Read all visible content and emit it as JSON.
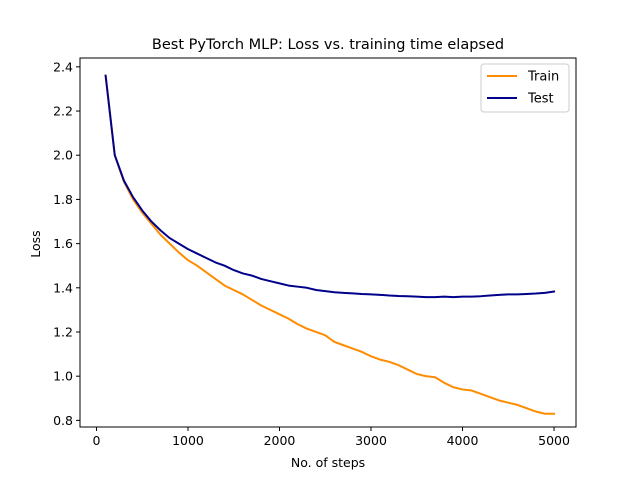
{
  "chart_data": {
    "type": "line",
    "title": "Best PyTorch MLP: Loss vs. training time elapsed",
    "xlabel": "No. of steps",
    "ylabel": "Loss",
    "xlim": [
      -180,
      5240
    ],
    "ylim": [
      0.77,
      2.44
    ],
    "xticks": [
      0,
      1000,
      2000,
      3000,
      4000,
      5000
    ],
    "yticks": [
      0.8,
      1.0,
      1.2,
      1.4,
      1.6,
      1.8,
      2.0,
      2.2,
      2.4
    ],
    "xtick_labels": [
      "0",
      "1000",
      "2000",
      "3000",
      "4000",
      "5000"
    ],
    "ytick_labels": [
      "0.8",
      "1.0",
      "1.2",
      "1.4",
      "1.6",
      "1.8",
      "2.0",
      "2.2",
      "2.4"
    ],
    "grid": false,
    "legend_position": "top-right",
    "x": [
      100,
      200,
      300,
      400,
      500,
      600,
      700,
      800,
      900,
      1000,
      1100,
      1200,
      1300,
      1400,
      1500,
      1600,
      1700,
      1800,
      1900,
      2000,
      2100,
      2200,
      2300,
      2400,
      2500,
      2600,
      2700,
      2800,
      2900,
      3000,
      3100,
      3200,
      3300,
      3400,
      3500,
      3600,
      3700,
      3800,
      3900,
      4000,
      4100,
      4200,
      4300,
      4400,
      4500,
      4600,
      4700,
      4800,
      4900,
      5000
    ],
    "series": [
      {
        "name": "Train",
        "color": "#ff8c00",
        "values": [
          2.36,
          2.0,
          1.88,
          1.8,
          1.74,
          1.69,
          1.64,
          1.6,
          1.56,
          1.525,
          1.5,
          1.47,
          1.44,
          1.41,
          1.39,
          1.37,
          1.345,
          1.32,
          1.3,
          1.28,
          1.26,
          1.235,
          1.215,
          1.2,
          1.185,
          1.155,
          1.14,
          1.125,
          1.11,
          1.09,
          1.075,
          1.065,
          1.05,
          1.03,
          1.01,
          1.0,
          0.995,
          0.97,
          0.95,
          0.94,
          0.935,
          0.92,
          0.905,
          0.89,
          0.88,
          0.87,
          0.855,
          0.84,
          0.83,
          0.83
        ]
      },
      {
        "name": "Test",
        "color": "#00008b",
        "values": [
          2.36,
          2.0,
          1.885,
          1.81,
          1.75,
          1.7,
          1.66,
          1.625,
          1.6,
          1.575,
          1.555,
          1.535,
          1.515,
          1.5,
          1.48,
          1.465,
          1.455,
          1.44,
          1.43,
          1.42,
          1.41,
          1.405,
          1.4,
          1.39,
          1.385,
          1.38,
          1.377,
          1.375,
          1.372,
          1.37,
          1.368,
          1.365,
          1.363,
          1.362,
          1.36,
          1.358,
          1.358,
          1.36,
          1.358,
          1.36,
          1.36,
          1.362,
          1.365,
          1.368,
          1.37,
          1.37,
          1.372,
          1.374,
          1.377,
          1.383
        ]
      }
    ]
  }
}
